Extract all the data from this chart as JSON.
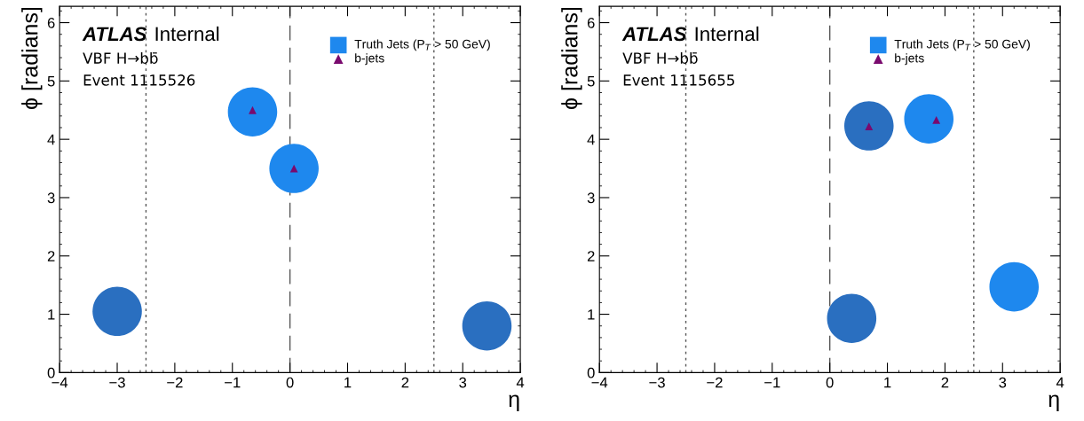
{
  "chart_data": [
    {
      "type": "scatter",
      "title": "ATLAS",
      "subtitle": "Internal",
      "xlabel": "η",
      "ylabel": "ϕ [radians]",
      "annotations": [
        "VBF H→bb̄",
        "Event 1115526"
      ],
      "xlim": [
        -4,
        4
      ],
      "ylim": [
        0,
        6.28
      ],
      "xticks": [
        {
          "value": -4,
          "label": "−4"
        },
        {
          "value": -3,
          "label": "−3"
        },
        {
          "value": -2,
          "label": "−2"
        },
        {
          "value": -1,
          "label": "−1"
        },
        0,
        1,
        2,
        3,
        4
      ],
      "yticks": [
        0,
        1,
        2,
        3,
        4,
        5,
        6
      ],
      "series": [
        {
          "name": "Truth Jets (P$_{T}$ > 50 GeV)",
          "color": "#1e88ee",
          "marker": "circle",
          "x": [
            -3.0,
            -0.65,
            0.07,
            3.42
          ],
          "values": [
            1.05,
            4.47,
            3.5,
            0.8
          ],
          "colors": [
            "#2a6fc0",
            "#1e88ee",
            "#1e88ee",
            "#2a6fc0"
          ]
        },
        {
          "name": "b-jets",
          "color": "#7a0a6e",
          "marker": "triangle",
          "x": [
            -0.65,
            0.07
          ],
          "values": [
            4.5,
            3.5
          ]
        }
      ],
      "ref_lines": [
        {
          "axis": "x",
          "value": -2.5,
          "line_style": "dotted",
          "color": "#555555"
        },
        {
          "axis": "x",
          "value": 0,
          "line_style": "dashed",
          "color": "#555555"
        },
        {
          "axis": "x",
          "value": 2.5,
          "line_style": "dotted",
          "color": "#555555"
        }
      ],
      "legend": "top right",
      "grid": false
    },
    {
      "type": "scatter",
      "title": "ATLAS",
      "subtitle": "Internal",
      "xlabel": "η",
      "ylabel": "ϕ [radians]",
      "annotations": [
        "VBF H→bb̄",
        "Event 1115655"
      ],
      "xlim": [
        -4,
        4
      ],
      "ylim": [
        0,
        6.28
      ],
      "xticks": [
        {
          "value": -4,
          "label": "−4"
        },
        {
          "value": -3,
          "label": "−3"
        },
        {
          "value": -2,
          "label": "−2"
        },
        {
          "value": -1,
          "label": "−1"
        },
        0,
        1,
        2,
        3,
        4
      ],
      "yticks": [
        0,
        1,
        2,
        3,
        4,
        5,
        6
      ],
      "series": [
        {
          "name": "Truth Jets (P$_{T}$ > 50 GeV)",
          "color": "#1e88ee",
          "marker": "circle",
          "x": [
            0.68,
            1.72,
            0.38,
            3.2
          ],
          "values": [
            4.23,
            4.35,
            0.93,
            1.47
          ],
          "colors": [
            "#2a6fc0",
            "#1e88ee",
            "#2a6fc0",
            "#1e88ee"
          ]
        },
        {
          "name": "b-jets",
          "color": "#7a0a6e",
          "marker": "triangle",
          "x": [
            0.68,
            1.85
          ],
          "values": [
            4.22,
            4.33
          ]
        }
      ],
      "ref_lines": [
        {
          "axis": "x",
          "value": -2.5,
          "line_style": "dotted",
          "color": "#555555"
        },
        {
          "axis": "x",
          "value": 0,
          "line_style": "dashed",
          "color": "#555555"
        },
        {
          "axis": "x",
          "value": 2.5,
          "line_style": "dotted",
          "color": "#555555"
        }
      ],
      "legend": "top right",
      "grid": false
    }
  ]
}
